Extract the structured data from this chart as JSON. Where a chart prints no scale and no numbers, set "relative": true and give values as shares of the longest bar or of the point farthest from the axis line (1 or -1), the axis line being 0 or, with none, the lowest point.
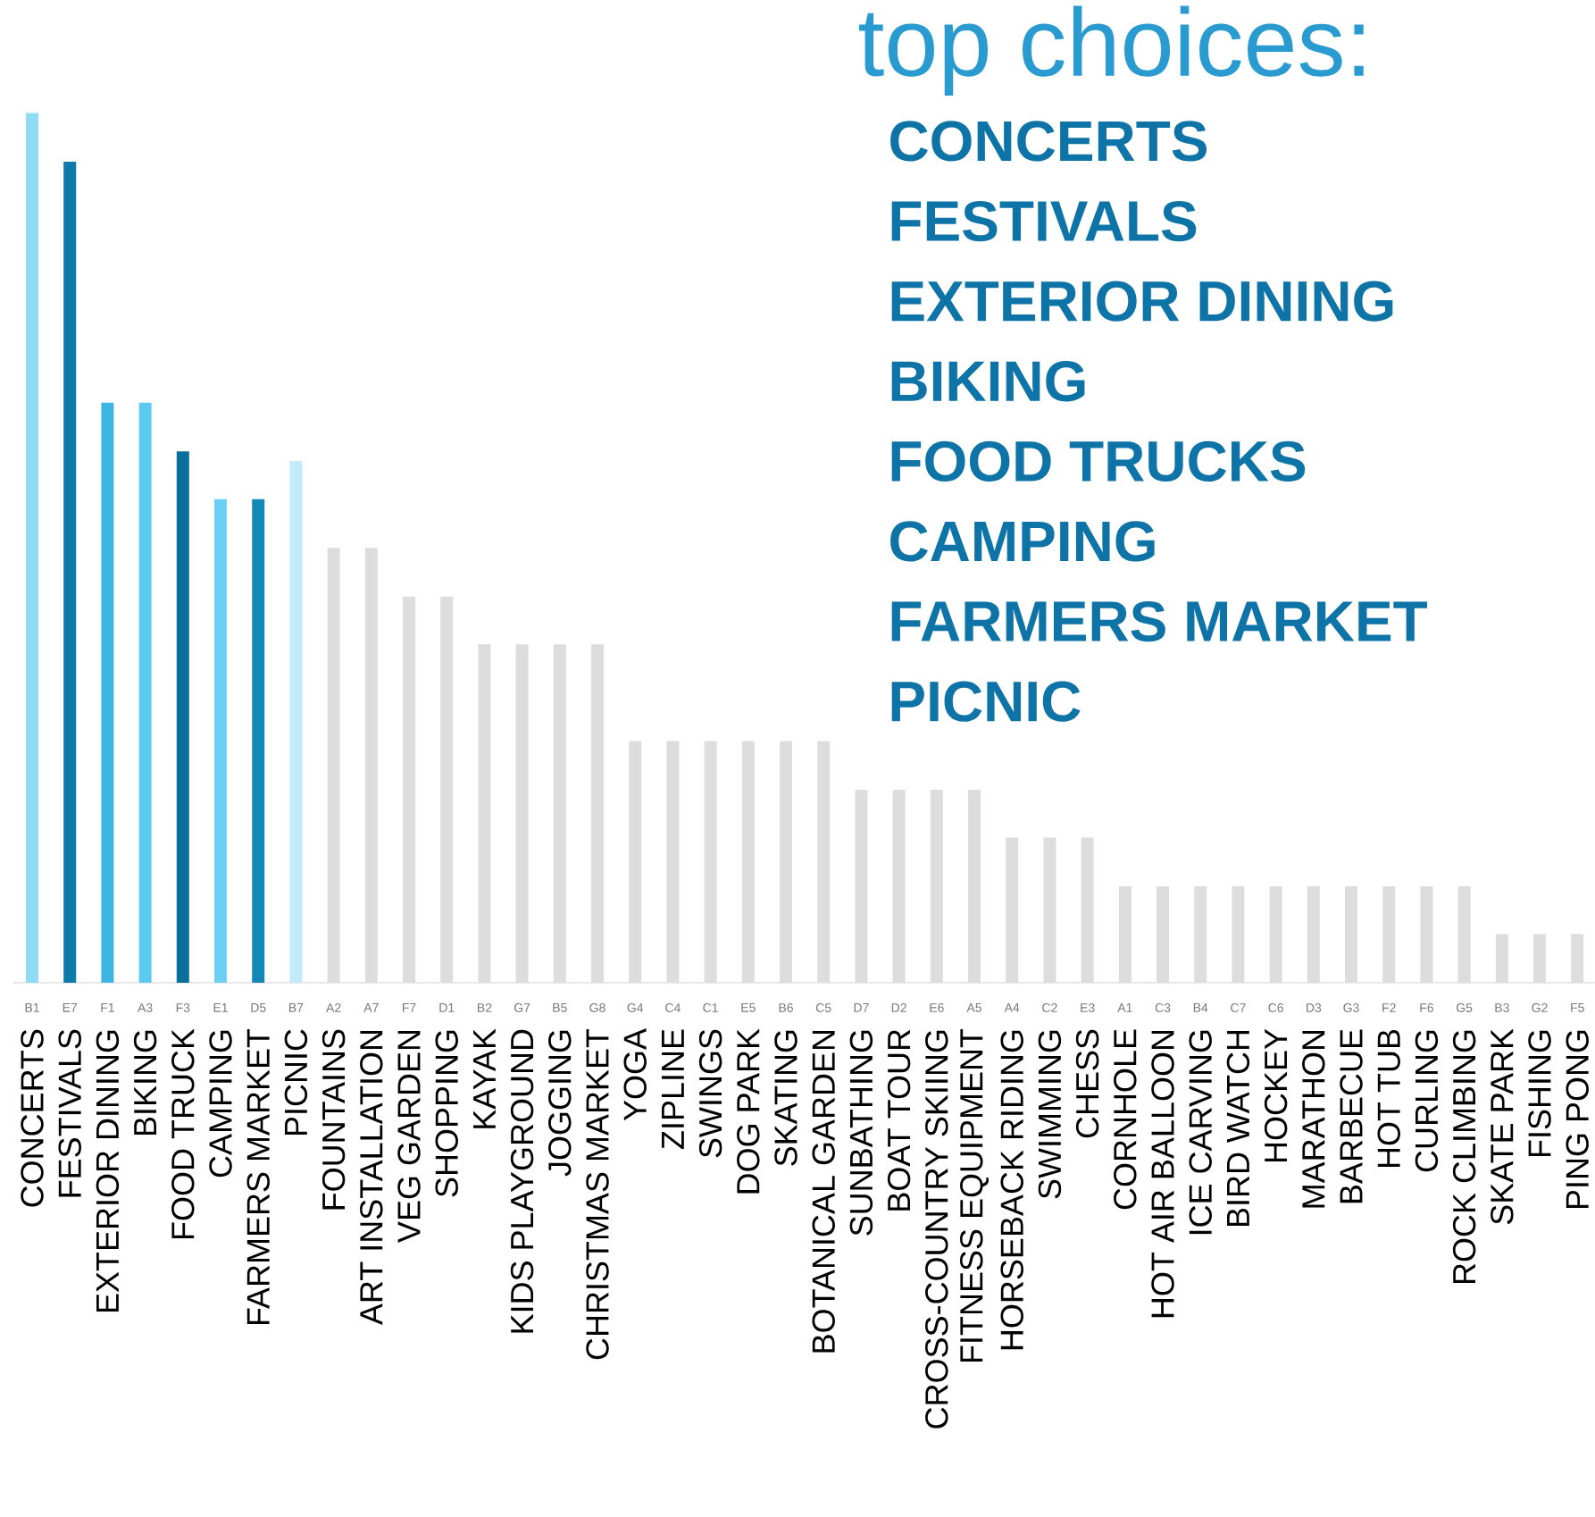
{
  "chart_data": {
    "type": "bar",
    "title": "top choices:",
    "relative": true,
    "categories": [
      "CONCERTS",
      "FESTIVALS",
      "EXTERIOR DINING",
      "BIKING",
      "FOOD TRUCK",
      "CAMPING",
      "FARMERS MARKET",
      "PICNIC",
      "FOUNTAINS",
      "ART INSTALLATION",
      "VEG GARDEN",
      "SHOPPING",
      "KAYAK",
      "KIDS PLAYGROUND",
      "JOGGING",
      "CHRISTMAS MARKET",
      "YOGA",
      "ZIPLINE",
      "SWINGS",
      "DOG PARK",
      "SKATING",
      "BOTANICAL GARDEN",
      "SUNBATHING",
      "BOAT TOUR",
      "CROSS-COUNTRY SKIING",
      "FITNESS EQUIPMENT",
      "HORSEBACK RIDING",
      "SWIMMING",
      "CHESS",
      "CORNHOLE",
      "HOT AIR BALLOON",
      "ICE CARVING",
      "BIRD WATCH",
      "HOCKEY",
      "MARATHON",
      "BARBECUE",
      "HOT TUB",
      "CURLING",
      "ROCK CLIMBING",
      "SKATE PARK",
      "FISHING",
      "PING PONG"
    ],
    "values": [
      1,
      0.944,
      0.667,
      0.667,
      0.611,
      0.556,
      0.556,
      0.6,
      0.5,
      0.5,
      0.444,
      0.444,
      0.389,
      0.389,
      0.389,
      0.389,
      0.278,
      0.278,
      0.278,
      0.278,
      0.278,
      0.278,
      0.222,
      0.222,
      0.222,
      0.222,
      0.167,
      0.167,
      0.167,
      0.111,
      0.111,
      0.111,
      0.111,
      0.111,
      0.111,
      0.111,
      0.111,
      0.111,
      0.111,
      0.056,
      0.056,
      0.056
    ],
    "colors": [
      "#8fdcf7",
      "#0c7bab",
      "#3db5e3",
      "#5ccaf0",
      "#0a6f9a",
      "#6cd0f5",
      "#1688b8",
      "#c2eafb",
      "#dddddd",
      "#dddddd",
      "#dddddd",
      "#dddddd",
      "#dddddd",
      "#dddddd",
      "#dddddd",
      "#dddddd",
      "#dddddd",
      "#dddddd",
      "#dddddd",
      "#dddddd",
      "#dddddd",
      "#dddddd",
      "#dddddd",
      "#dddddd",
      "#dddddd",
      "#dddddd",
      "#dddddd",
      "#dddddd",
      "#dddddd",
      "#dddddd",
      "#dddddd",
      "#dddddd",
      "#dddddd",
      "#dddddd",
      "#dddddd",
      "#dddddd",
      "#dddddd",
      "#dddddd",
      "#dddddd",
      "#dddddd",
      "#dddddd",
      "#dddddd"
    ],
    "annotations": [
      "CONCERTS",
      "FESTIVALS",
      "EXTERIOR DINING",
      "BIKING",
      "FOOD TRUCKS",
      "CAMPING",
      "FARMERS MARKET",
      "PICNIC",
      {
        "text": "B1",
        "x": "CONCERTS",
        "y": 0
      },
      {
        "text": "E7",
        "x": "FESTIVALS",
        "y": 0
      },
      {
        "text": "F1",
        "x": "EXTERIOR DINING",
        "y": 0
      },
      {
        "text": "A3",
        "x": "BIKING",
        "y": 0
      },
      {
        "text": "F3",
        "x": "FOOD TRUCK",
        "y": 0
      },
      {
        "text": "E1",
        "x": "CAMPING",
        "y": 0
      },
      {
        "text": "D5",
        "x": "FARMERS MARKET",
        "y": 0
      },
      {
        "text": "B7",
        "x": "PICNIC",
        "y": 0
      },
      {
        "text": "A2",
        "x": "FOUNTAINS",
        "y": 0
      },
      {
        "text": "A7",
        "x": "ART INSTALLATION",
        "y": 0
      },
      {
        "text": "F7",
        "x": "VEG GARDEN",
        "y": 0
      },
      {
        "text": "D1",
        "x": "SHOPPING",
        "y": 0
      },
      {
        "text": "B2",
        "x": "KAYAK",
        "y": 0
      },
      {
        "text": "G7",
        "x": "KIDS PLAYGROUND",
        "y": 0
      },
      {
        "text": "B5",
        "x": "JOGGING",
        "y": 0
      },
      {
        "text": "G8",
        "x": "CHRISTMAS MARKET",
        "y": 0
      },
      {
        "text": "G4",
        "x": "YOGA",
        "y": 0
      },
      {
        "text": "C4",
        "x": "ZIPLINE",
        "y": 0
      },
      {
        "text": "C1",
        "x": "SWINGS",
        "y": 0
      },
      {
        "text": "E5",
        "x": "DOG PARK",
        "y": 0
      },
      {
        "text": "B6",
        "x": "SKATING",
        "y": 0
      },
      {
        "text": "C5",
        "x": "BOTANICAL GARDEN",
        "y": 0
      },
      {
        "text": "D7",
        "x": "SUNBATHING",
        "y": 0
      },
      {
        "text": "D2",
        "x": "BOAT TOUR",
        "y": 0
      },
      {
        "text": "E6",
        "x": "CROSS-COUNTRY SKIING",
        "y": 0
      },
      {
        "text": "A5",
        "x": "FITNESS EQUIPMENT",
        "y": 0
      },
      {
        "text": "A4",
        "x": "HORSEBACK RIDING",
        "y": 0
      },
      {
        "text": "C2",
        "x": "SWIMMING",
        "y": 0
      },
      {
        "text": "E3",
        "x": "CHESS",
        "y": 0
      },
      {
        "text": "A1",
        "x": "CORNHOLE",
        "y": 0
      },
      {
        "text": "C3",
        "x": "HOT AIR BALLOON",
        "y": 0
      },
      {
        "text": "B4",
        "x": "ICE CARVING",
        "y": 0
      },
      {
        "text": "C7",
        "x": "BIRD WATCH",
        "y": 0
      },
      {
        "text": "C6",
        "x": "HOCKEY",
        "y": 0
      },
      {
        "text": "D3",
        "x": "MARATHON",
        "y": 0
      },
      {
        "text": "G3",
        "x": "BARBECUE",
        "y": 0
      },
      {
        "text": "F2",
        "x": "HOT TUB",
        "y": 0
      },
      {
        "text": "F6",
        "x": "CURLING",
        "y": 0
      },
      {
        "text": "G5",
        "x": "ROCK CLIMBING",
        "y": 0
      },
      {
        "text": "B3",
        "x": "SKATE PARK",
        "y": 0
      },
      {
        "text": "G2",
        "x": "FISHING",
        "y": 0
      },
      {
        "text": "F5",
        "x": "PING PONG",
        "y": 0
      }
    ]
  }
}
